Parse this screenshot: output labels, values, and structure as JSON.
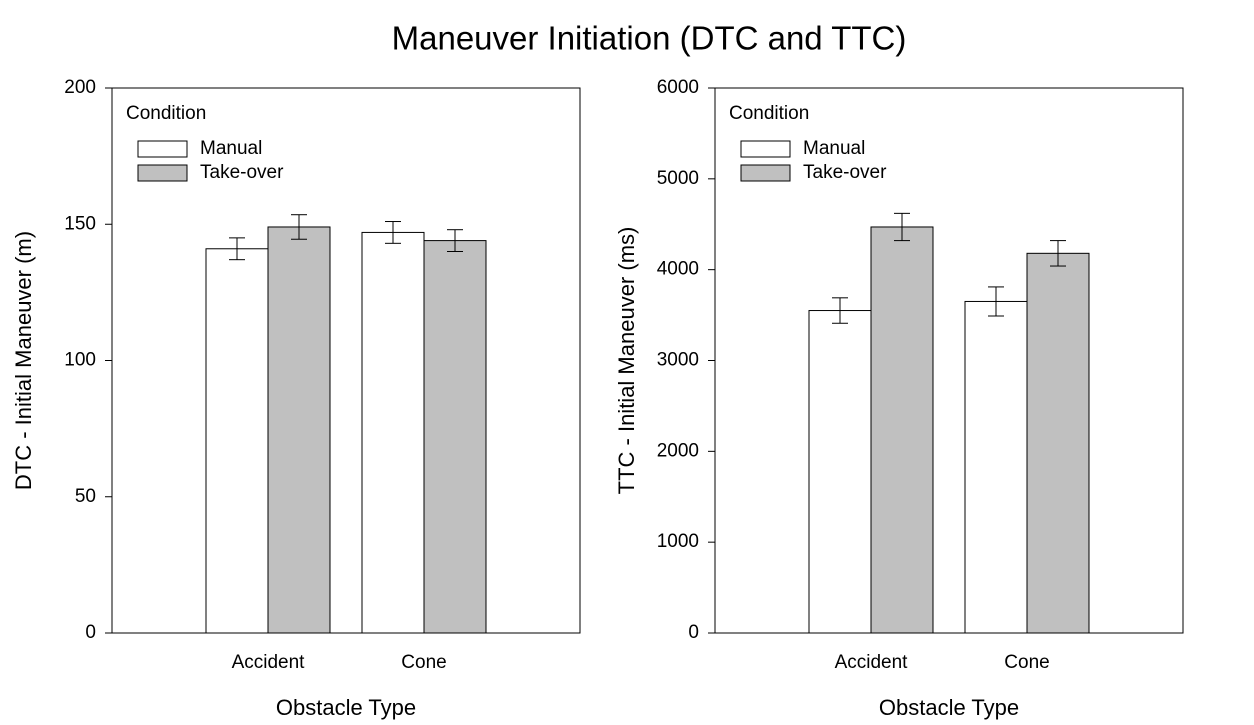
{
  "title": "Maneuver Initiation (DTC and TTC)",
  "chart_data": [
    {
      "type": "bar",
      "categories": [
        "Accident",
        "Cone"
      ],
      "xlabel": "Obstacle Type",
      "ylabel": "DTC - Initial Maneuver (m)",
      "legend_title": "Condition",
      "legend": "upper left",
      "series": [
        {
          "name": "Manual",
          "color": "#ffffff",
          "values": [
            141,
            147
          ],
          "errors": [
            4,
            4
          ]
        },
        {
          "name": "Take-over",
          "color": "#c0c0c0",
          "values": [
            149,
            144
          ],
          "errors": [
            4.5,
            4
          ]
        }
      ],
      "ylim": [
        0,
        200
      ],
      "yticks": [
        0,
        50,
        100,
        150,
        200
      ]
    },
    {
      "type": "bar",
      "categories": [
        "Accident",
        "Cone"
      ],
      "xlabel": "Obstacle Type",
      "ylabel": "TTC - Initial Maneuver (ms)",
      "legend_title": "Condition",
      "legend": "upper left",
      "series": [
        {
          "name": "Manual",
          "color": "#ffffff",
          "values": [
            3550,
            3650
          ],
          "errors": [
            140,
            160
          ]
        },
        {
          "name": "Take-over",
          "color": "#c0c0c0",
          "values": [
            4470,
            4180
          ],
          "errors": [
            150,
            140
          ]
        }
      ],
      "ylim": [
        0,
        6000
      ],
      "yticks": [
        0,
        1000,
        2000,
        3000,
        4000,
        5000,
        6000
      ]
    }
  ]
}
